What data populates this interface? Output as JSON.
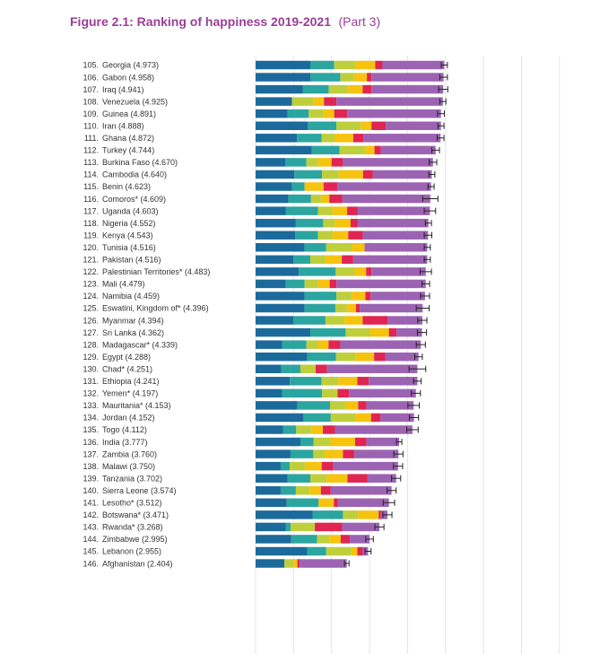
{
  "chart_data": {
    "type": "bar",
    "orientation": "horizontal",
    "stacked": true,
    "title": "Figure 2.1: Ranking of happiness 2019-2021",
    "subtitle": "(Part 3)",
    "grid": true,
    "legend": "none",
    "xlim": [
      0,
      8.5
    ],
    "component_order": [
      "c1",
      "c2",
      "c3",
      "c4",
      "c5",
      "c6",
      "c7"
    ],
    "component_colors": [
      "#1b6a9b",
      "#2ba5a0",
      "#bfcf3c",
      "#f6c30e",
      "#f07a22",
      "#e02552",
      "#9c63b3"
    ],
    "rows": [
      {
        "rank": "105.",
        "label": "Georgia (4.973)",
        "segments": [
          1.44,
          0.63,
          0.56,
          0.52,
          0.0,
          0.19,
          1.63
        ],
        "ci": 0.08
      },
      {
        "rank": "106.",
        "label": "Gabon (4.958)",
        "segments": [
          1.44,
          0.79,
          0.36,
          0.34,
          0.0,
          0.12,
          1.9
        ],
        "ci": 0.1
      },
      {
        "rank": "107.",
        "label": "Iraq (4.941)",
        "segments": [
          1.24,
          0.69,
          0.51,
          0.38,
          0.0,
          0.23,
          1.89
        ],
        "ci": 0.12
      },
      {
        "rank": "108.",
        "label": "Venezuela (4.925)",
        "segments": [
          0.96,
          0.0,
          0.56,
          0.28,
          0.0,
          0.33,
          2.8
        ],
        "ci": 0.08
      },
      {
        "rank": "109.",
        "label": "Guinea (4.891)",
        "segments": [
          0.84,
          0.56,
          0.39,
          0.28,
          0.0,
          0.34,
          2.47
        ],
        "ci": 0.09
      },
      {
        "rank": "110.",
        "label": "Iran (4.888)",
        "segments": [
          1.37,
          0.76,
          0.64,
          0.28,
          0.0,
          0.38,
          1.45
        ],
        "ci": 0.08
      },
      {
        "rank": "111.",
        "label": "Ghana (4.872)",
        "segments": [
          1.09,
          0.65,
          0.35,
          0.48,
          0.0,
          0.27,
          2.03
        ],
        "ci": 0.09
      },
      {
        "rank": "112.",
        "label": "Turkey (4.744)",
        "segments": [
          1.48,
          0.73,
          0.68,
          0.24,
          0.0,
          0.17,
          1.44
        ],
        "ci": 0.1
      },
      {
        "rank": "113.",
        "label": "Burkina Faso (4.670)",
        "segments": [
          0.78,
          0.56,
          0.3,
          0.36,
          0.0,
          0.3,
          2.37
        ],
        "ci": 0.1
      },
      {
        "rank": "114.",
        "label": "Cambodia (4.640)",
        "segments": [
          1.02,
          0.73,
          0.44,
          0.64,
          0.0,
          0.26,
          1.55
        ],
        "ci": 0.08
      },
      {
        "rank": "115.",
        "label": "Benin (4.623)",
        "segments": [
          0.96,
          0.33,
          0.0,
          0.5,
          0.0,
          0.36,
          2.47
        ],
        "ci": 0.08
      },
      {
        "rank": "116.",
        "label": "Comoros* (4.609)",
        "segments": [
          0.86,
          0.6,
          0.26,
          0.22,
          0.0,
          0.34,
          2.32
        ],
        "ci": 0.2
      },
      {
        "rank": "117.",
        "label": "Uganda (4.603)",
        "segments": [
          0.8,
          0.84,
          0.38,
          0.39,
          0.0,
          0.28,
          1.9
        ],
        "ci": 0.15
      },
      {
        "rank": "118.",
        "label": "Nigeria (4.552)",
        "segments": [
          1.06,
          0.72,
          0.3,
          0.42,
          0.0,
          0.19,
          1.86
        ],
        "ci": 0.08
      },
      {
        "rank": "119.",
        "label": "Kenya (4.543)",
        "segments": [
          1.04,
          0.6,
          0.38,
          0.42,
          0.0,
          0.38,
          1.72
        ],
        "ci": 0.1
      },
      {
        "rank": "120.",
        "label": "Tunisia (4.516)",
        "segments": [
          1.29,
          0.57,
          0.68,
          0.33,
          0.0,
          0.0,
          1.65
        ],
        "ci": 0.08
      },
      {
        "rank": "121.",
        "label": "Pakistan (4.516)",
        "segments": [
          1.0,
          0.44,
          0.4,
          0.43,
          0.0,
          0.3,
          1.95
        ],
        "ci": 0.08
      },
      {
        "rank": "122.",
        "label": "Palestinian Territories* (4.483)",
        "segments": [
          1.14,
          0.97,
          0.5,
          0.3,
          0.0,
          0.14,
          1.43
        ],
        "ci": 0.15
      },
      {
        "rank": "123.",
        "label": "Mali (4.479)",
        "segments": [
          0.79,
          0.5,
          0.36,
          0.3,
          0.0,
          0.18,
          2.35
        ],
        "ci": 0.1
      },
      {
        "rank": "124.",
        "label": "Namibia (4.459)",
        "segments": [
          1.29,
          0.84,
          0.4,
          0.36,
          0.0,
          0.14,
          1.43
        ],
        "ci": 0.12
      },
      {
        "rank": "125.",
        "label": "Eswatini, Kingdom of* (4.396)",
        "segments": [
          1.29,
          0.81,
          0.3,
          0.24,
          0.0,
          0.1,
          1.66
        ],
        "ci": 0.17
      },
      {
        "rank": "126.",
        "label": "Myanmar (4.394)",
        "segments": [
          1.0,
          0.84,
          0.5,
          0.48,
          0.0,
          0.66,
          0.91
        ],
        "ci": 0.12
      },
      {
        "rank": "127.",
        "label": "Sri Lanka (4.362)",
        "segments": [
          1.44,
          0.93,
          0.64,
          0.5,
          0.0,
          0.2,
          0.67
        ],
        "ci": 0.12
      },
      {
        "rank": "128.",
        "label": "Madagascar* (4.339)",
        "segments": [
          0.7,
          0.64,
          0.3,
          0.28,
          0.0,
          0.31,
          2.12
        ],
        "ci": 0.12
      },
      {
        "rank": "129.",
        "label": "Egypt (4.288)",
        "segments": [
          1.36,
          0.76,
          0.52,
          0.48,
          0.0,
          0.3,
          0.87
        ],
        "ci": 0.1
      },
      {
        "rank": "130.",
        "label": "Chad* (4.251)",
        "segments": [
          0.68,
          0.5,
          0.4,
          0.0,
          0.0,
          0.3,
          2.38
        ],
        "ci": 0.22
      },
      {
        "rank": "131.",
        "label": "Ethiopia (4.241)",
        "segments": [
          0.9,
          0.84,
          0.44,
          0.5,
          0.0,
          0.3,
          1.28
        ],
        "ci": 0.1
      },
      {
        "rank": "132.",
        "label": "Yemen* (4.197)",
        "segments": [
          0.7,
          1.05,
          0.41,
          0.0,
          0.0,
          0.3,
          1.76
        ],
        "ci": 0.12
      },
      {
        "rank": "133.",
        "label": "Mauritania* (4.153)",
        "segments": [
          1.1,
          0.86,
          0.4,
          0.34,
          0.0,
          0.22,
          1.24
        ],
        "ci": 0.15
      },
      {
        "rank": "134.",
        "label": "Jordan (4.152)",
        "segments": [
          1.26,
          0.72,
          0.64,
          0.42,
          0.0,
          0.25,
          0.88
        ],
        "ci": 0.12
      },
      {
        "rank": "135.",
        "label": "Togo (4.112)",
        "segments": [
          0.72,
          0.35,
          0.4,
          0.3,
          0.0,
          0.32,
          2.04
        ],
        "ci": 0.15
      },
      {
        "rank": "136.",
        "label": "India (3.777)",
        "segments": [
          1.18,
          0.35,
          0.44,
          0.65,
          0.0,
          0.3,
          0.86
        ],
        "ci": 0.07
      },
      {
        "rank": "137.",
        "label": "Zambia (3.760)",
        "segments": [
          0.92,
          0.6,
          0.3,
          0.48,
          0.0,
          0.3,
          1.16
        ],
        "ci": 0.12
      },
      {
        "rank": "138.",
        "label": "Malawi (3.750)",
        "segments": [
          0.66,
          0.24,
          0.4,
          0.44,
          0.0,
          0.3,
          1.71
        ],
        "ci": 0.12
      },
      {
        "rank": "139.",
        "label": "Tanzania (3.702)",
        "segments": [
          0.84,
          0.6,
          0.44,
          0.54,
          0.0,
          0.52,
          0.76
        ],
        "ci": 0.12
      },
      {
        "rank": "140.",
        "label": "Sierra Leone (3.574)",
        "segments": [
          0.66,
          0.4,
          0.36,
          0.3,
          0.0,
          0.26,
          1.6
        ],
        "ci": 0.12
      },
      {
        "rank": "141.",
        "label": "Lesotho* (3.512)",
        "segments": [
          0.82,
          0.84,
          0.0,
          0.4,
          0.0,
          0.1,
          1.35
        ],
        "ci": 0.15
      },
      {
        "rank": "142.",
        "label": "Botswana* (3.471)",
        "segments": [
          1.5,
          0.8,
          0.4,
          0.54,
          0.0,
          0.06,
          0.17
        ],
        "ci": 0.12
      },
      {
        "rank": "143.",
        "label": "Rwanda* (3.268)",
        "segments": [
          0.8,
          0.12,
          0.64,
          0.0,
          0.0,
          0.72,
          0.98
        ],
        "ci": 0.12
      },
      {
        "rank": "144.",
        "label": "Zimbabwe (2.995)",
        "segments": [
          0.94,
          0.68,
          0.32,
          0.3,
          0.0,
          0.24,
          0.52
        ],
        "ci": 0.1
      },
      {
        "rank": "145.",
        "label": "Lebanon (2.955)",
        "segments": [
          1.36,
          0.5,
          0.66,
          0.16,
          0.0,
          0.14,
          0.14
        ],
        "ci": 0.08
      },
      {
        "rank": "146.",
        "label": "Afghanistan (2.404)",
        "segments": [
          0.76,
          0.0,
          0.24,
          0.1,
          0.0,
          0.06,
          1.24
        ],
        "ci": 0.06
      }
    ]
  }
}
